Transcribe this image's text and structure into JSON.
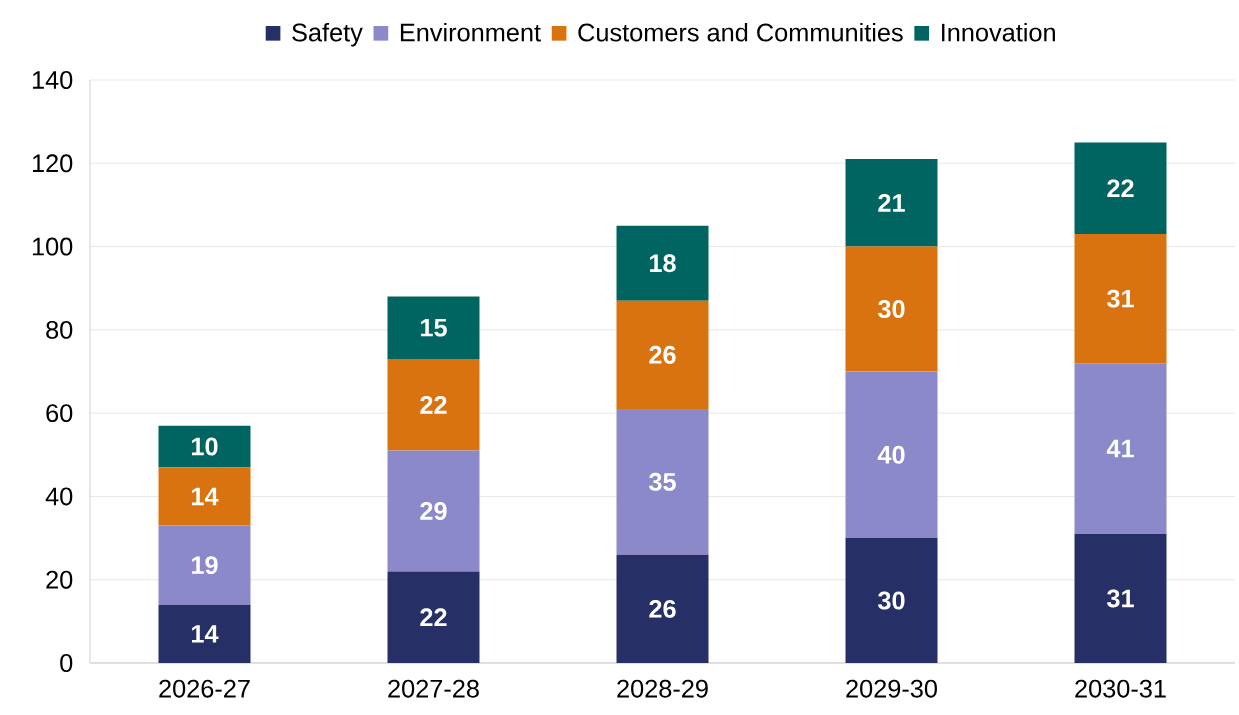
{
  "chart_data": {
    "type": "bar",
    "stacked": true,
    "data_labels": true,
    "grid": "y",
    "legend": "top",
    "categories": [
      "2026-27",
      "2027-28",
      "2028-29",
      "2029-30",
      "2030-31"
    ],
    "ylim": [
      0,
      140
    ],
    "yticks": [
      0,
      20,
      40,
      60,
      80,
      100,
      120,
      140
    ],
    "series": [
      {
        "name": "Safety",
        "color": "#263066",
        "values": [
          14,
          22,
          26,
          30,
          31
        ]
      },
      {
        "name": "Environment",
        "color": "#8b89c9",
        "values": [
          19,
          29,
          35,
          40,
          41
        ]
      },
      {
        "name": "Customers and Communities",
        "color": "#d9730f",
        "values": [
          14,
          22,
          26,
          30,
          31
        ]
      },
      {
        "name": "Innovation",
        "color": "#006561",
        "values": [
          10,
          15,
          18,
          21,
          22
        ]
      }
    ]
  }
}
